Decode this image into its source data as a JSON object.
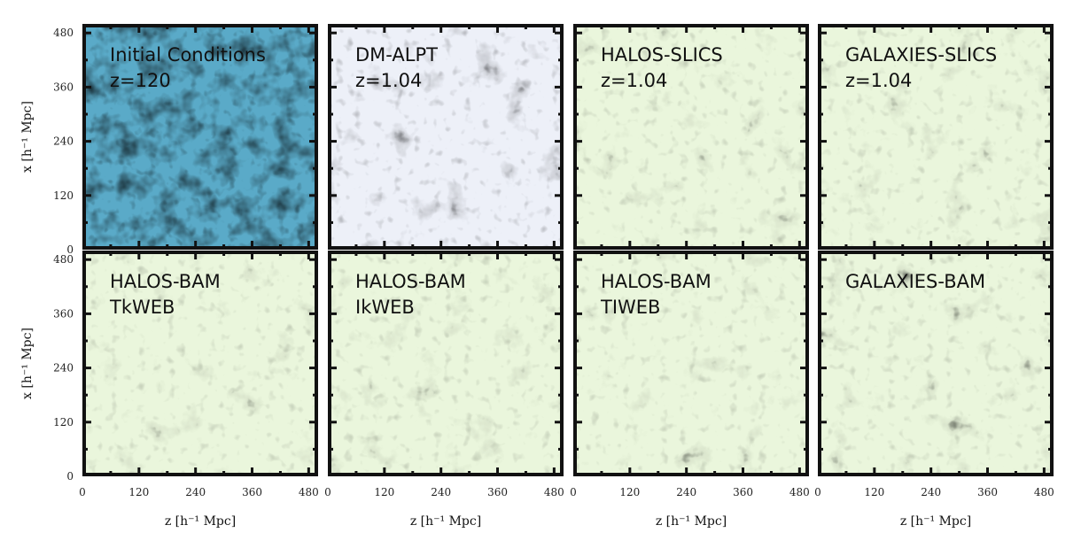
{
  "figure": {
    "rows": [
      {
        "panels": [
          {
            "id": "initial-conditions",
            "lines": [
              "Initial Conditions",
              "z=120"
            ],
            "colormap": "ic"
          },
          {
            "id": "dm-alpt",
            "lines": [
              "DM-ALPT",
              "z=1.04"
            ],
            "colormap": "dm"
          },
          {
            "id": "halos-slics",
            "lines": [
              "HALOS-SLICS",
              "z=1.04"
            ],
            "colormap": "tracer"
          },
          {
            "id": "galaxies-slics",
            "lines": [
              "GALAXIES-SLICS",
              "z=1.04"
            ],
            "colormap": "tracer"
          }
        ]
      },
      {
        "panels": [
          {
            "id": "halos-bam-tkweb",
            "lines": [
              "HALOS-BAM",
              "TkWEB"
            ],
            "colormap": "tracer"
          },
          {
            "id": "halos-bam-ikweb",
            "lines": [
              "HALOS-BAM",
              "IkWEB"
            ],
            "colormap": "tracer"
          },
          {
            "id": "halos-bam-tiweb",
            "lines": [
              "HALOS-BAM",
              "TIWEB"
            ],
            "colormap": "tracer"
          },
          {
            "id": "galaxies-bam",
            "lines": [
              "GALAXIES-BAM"
            ],
            "colormap": "tracer"
          }
        ]
      }
    ],
    "x_ticks": [
      "0",
      "120",
      "240",
      "360",
      "480"
    ],
    "y_ticks": [
      "0",
      "120",
      "240",
      "360",
      "480"
    ],
    "xlabel": "z [h⁻¹ Mpc]",
    "ylabel": "x [h⁻¹ Mpc]",
    "axis_range": [
      0,
      500
    ],
    "tick_values": [
      0,
      120,
      240,
      360,
      480
    ],
    "colors": {
      "ic_low": "#1f5fa0",
      "ic_mid": "#5aaac8",
      "ic_high": "#d9ec9e",
      "dm_low": "#edf0f8",
      "dm_mid": "#9aa9d8",
      "dm_high": "#7a1460",
      "tracer_low": "#eaf6dc",
      "tracer_mid": "#9fd6c0",
      "tracer_high": "#1c6fb0"
    }
  }
}
